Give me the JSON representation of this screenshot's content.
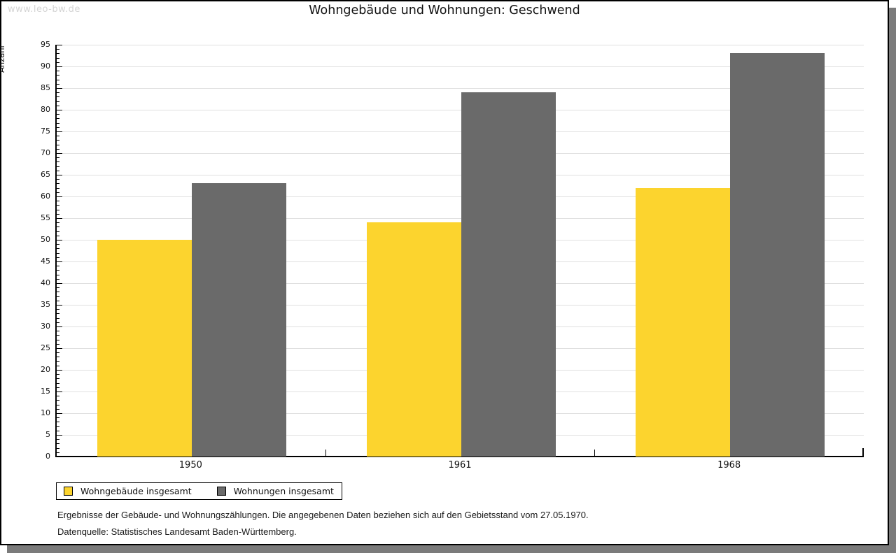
{
  "watermark": "www.leo-bw.de",
  "title": "Wohngebäude und Wohnungen: Geschwend",
  "chart_data": {
    "type": "bar",
    "title": "Wohngebäude und Wohnungen: Geschwend",
    "categories": [
      "1950",
      "1961",
      "1968"
    ],
    "series": [
      {
        "name": "Wohngebäude insgesamt",
        "color": "#fcd42e",
        "values": [
          50,
          54,
          62
        ]
      },
      {
        "name": "Wohnungen insgesamt",
        "color": "#6a6a6a",
        "values": [
          63,
          84,
          93
        ]
      }
    ],
    "xlabel": "",
    "ylabel": "Anzahl",
    "ylim": [
      0,
      95
    ],
    "ytick_step": 5,
    "minor_tick_step": 1,
    "grid": true,
    "legend_position": "bottom-left"
  },
  "colors": {
    "bar_yellow": "#fcd42e",
    "bar_gray": "#6a6a6a",
    "gridline": "#e0e0e0",
    "axis": "#000000",
    "shadow": "#7b7b7b",
    "watermark": "#d4d4d4"
  },
  "footer": {
    "line1": "Ergebnisse der Gebäude- und Wohnungszählungen. Die angegebenen Daten beziehen sich auf den Gebietsstand vom 27.05.1970.",
    "line2": "Datenquelle: Statistisches Landesamt Baden-Württemberg."
  }
}
